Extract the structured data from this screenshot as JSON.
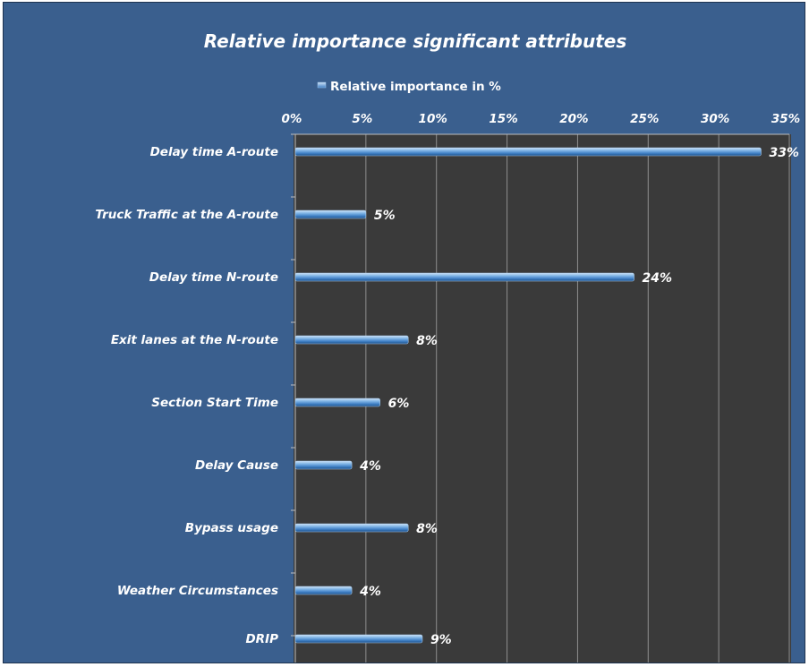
{
  "chart_data": {
    "type": "bar",
    "orientation": "horizontal",
    "title": "Relative importance significant attributes",
    "legend": {
      "position": "top",
      "entries": [
        "Relative importance in %"
      ]
    },
    "series": [
      {
        "name": "Relative importance in %",
        "values": [
          33,
          5,
          24,
          8,
          6,
          4,
          8,
          4,
          9
        ],
        "labels": [
          "33%",
          "5%",
          "24%",
          "8%",
          "6%",
          "4%",
          "8%",
          "4%",
          "9%"
        ]
      }
    ],
    "categories": [
      "Delay time A-route",
      "Truck Traffic at the A-route",
      "Delay time N-route",
      "Exit lanes at the  N-route",
      "Section Start Time",
      "Delay Cause",
      "Bypass usage",
      "Weather Circumstances",
      "DRIP"
    ],
    "x_ticks": [
      "0%",
      "5%",
      "10%",
      "15%",
      "20%",
      "25%",
      "30%",
      "35%"
    ],
    "x_tick_values": [
      0,
      5,
      10,
      15,
      20,
      25,
      30,
      35
    ],
    "xlim": [
      0,
      35
    ],
    "x_axis_position": "top",
    "grid": true,
    "colors": {
      "frame": "#3a5f8e",
      "plot_area": "#3a3a3a",
      "bar": "#5b9bd5",
      "text": "#ffffff"
    }
  }
}
